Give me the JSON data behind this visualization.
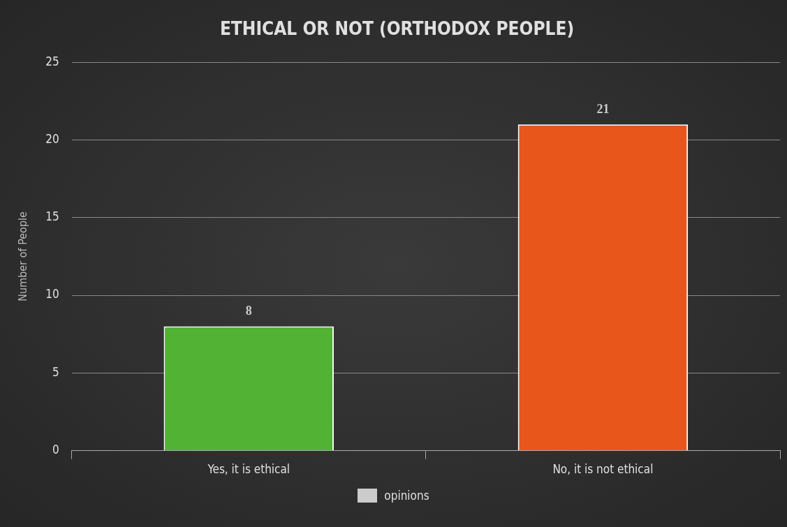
{
  "chart_data": {
    "type": "bar",
    "title": "ETHICAL OR NOT (ORTHODOX PEOPLE)",
    "ylabel": "Number of People",
    "categories": [
      "Yes, it is ethical",
      "No, it is not ethical"
    ],
    "series": [
      {
        "name": "opinions",
        "color": "#cccccc",
        "colors": [
          "#52b234",
          "#e8561c"
        ],
        "values": [
          8,
          21
        ]
      }
    ],
    "ylim": [
      0,
      25
    ],
    "yticks": [
      0,
      5,
      10,
      15,
      20,
      25
    ],
    "grid": "y",
    "legend": "bottom",
    "data_labels": true
  }
}
